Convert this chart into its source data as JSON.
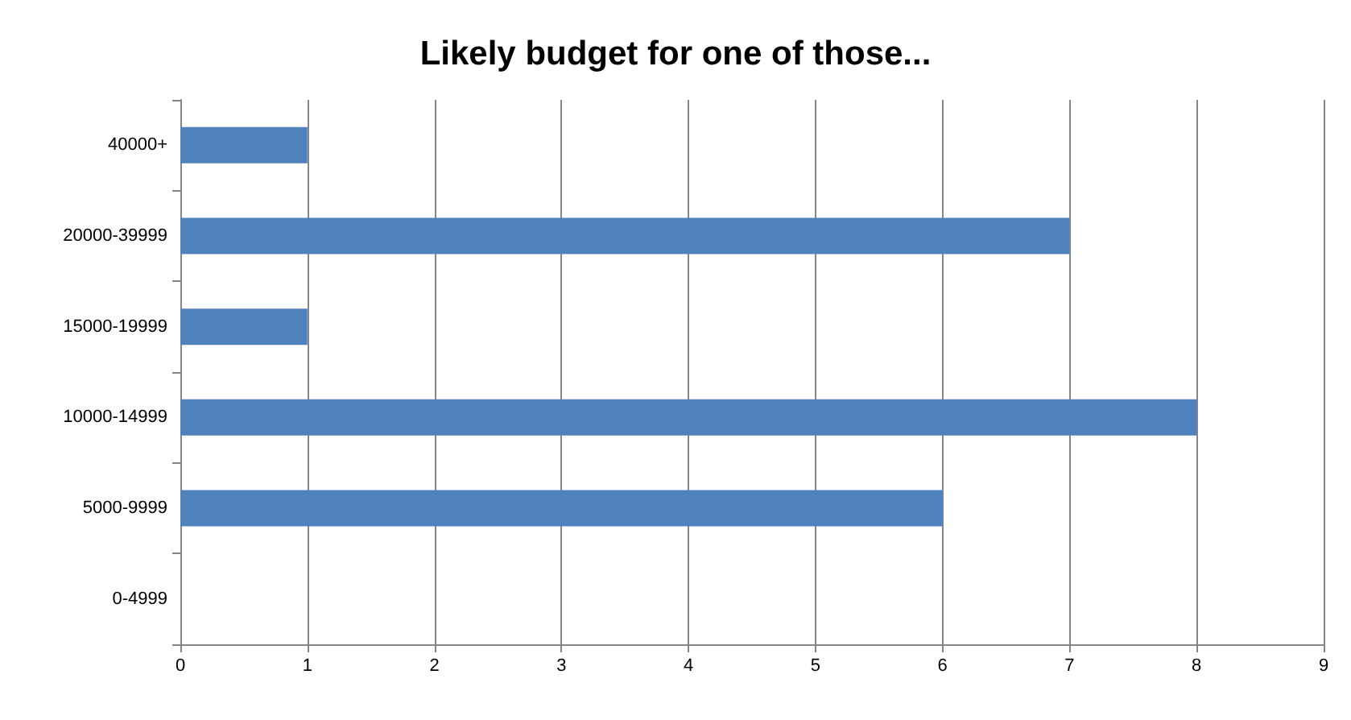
{
  "chart_data": {
    "type": "bar",
    "orientation": "horizontal",
    "title": "Likely budget for one of those...",
    "categories": [
      "40000+",
      "20000-39999",
      "15000-19999",
      "10000-14999",
      "5000-9999",
      "0-4999"
    ],
    "values": [
      1,
      7,
      1,
      8,
      6,
      0
    ],
    "color": "#4f81bd",
    "xlim": [
      0,
      9
    ],
    "xticks": [
      0,
      1,
      2,
      3,
      4,
      5,
      6,
      7,
      8,
      9
    ],
    "grid": "x"
  }
}
